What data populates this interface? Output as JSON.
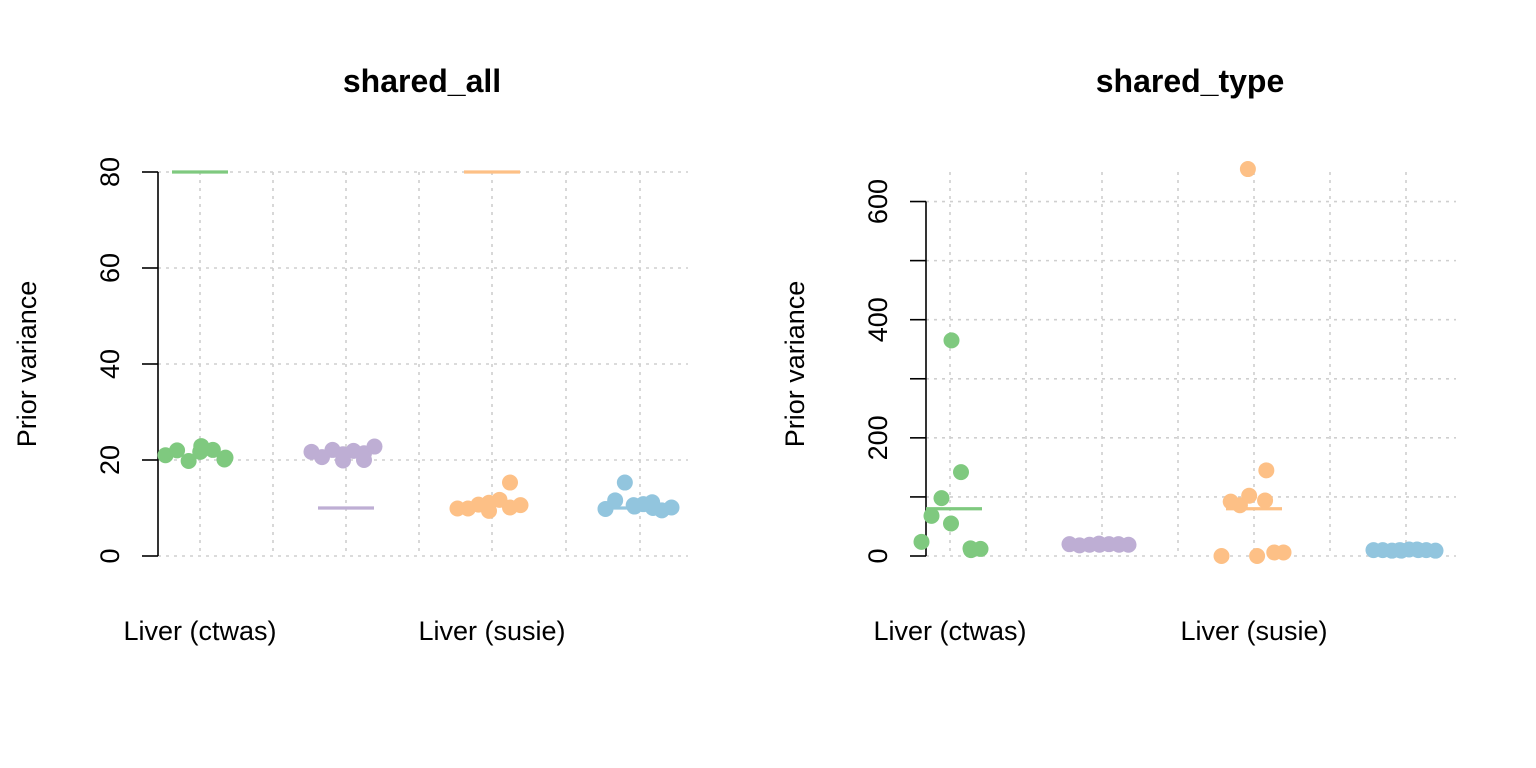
{
  "chart_data": [
    {
      "type": "scatter",
      "title": "shared_all",
      "xlabel": "",
      "ylabel": "Prior variance",
      "ylim": [
        0,
        80
      ],
      "yticks": [
        0,
        20,
        40,
        60,
        80
      ],
      "categories": [
        "Liver (ctwas)",
        "",
        "Liver (susie)",
        ""
      ],
      "category_labels_shown": [
        "Liver (ctwas)",
        "Liver (susie)"
      ],
      "grid": true,
      "series": [
        {
          "color": "#7fc97f",
          "values": [
            21.0,
            22.0,
            19.8,
            21.7,
            22.9,
            22.1,
            20.1,
            20.5
          ],
          "median_line": 80
        },
        {
          "color": "#beaed4",
          "values": [
            21.7,
            20.6,
            22.1,
            19.9,
            21.2,
            21.9,
            20.0,
            21.4,
            22.8
          ],
          "median_line": 10
        },
        {
          "color": "#fdc086",
          "values": [
            9.9,
            9.9,
            10.7,
            11.1,
            9.4,
            11.7,
            10.1,
            15.3,
            10.6
          ],
          "median_line": 80
        },
        {
          "color": "#92c5de",
          "values": [
            9.8,
            11.6,
            15.3,
            10.3,
            10.6,
            10.8,
            10.0,
            11.2,
            9.5,
            10.1
          ],
          "median_line": 10
        }
      ]
    },
    {
      "type": "scatter",
      "title": "shared_type",
      "xlabel": "",
      "ylabel": "Prior variance",
      "ylim": [
        0,
        650
      ],
      "yticks": [
        0,
        200,
        400,
        600
      ],
      "yminor": [
        100,
        300,
        500
      ],
      "categories": [
        "Liver (ctwas)",
        "",
        "Liver (susie)",
        ""
      ],
      "category_labels_shown": [
        "Liver (ctwas)",
        "Liver (susie)"
      ],
      "grid": true,
      "series": [
        {
          "color": "#7fc97f",
          "values": [
            24,
            68,
            98,
            365,
            55,
            142,
            10,
            13,
            12
          ],
          "median_line": 80
        },
        {
          "color": "#beaed4",
          "values": [
            20,
            18,
            19,
            19,
            21,
            20,
            19,
            20,
            19
          ],
          "median_line": 15
        },
        {
          "color": "#fdc086",
          "values": [
            0,
            92,
            86,
            102,
            655,
            0,
            145,
            94,
            6,
            6
          ],
          "median_line": 80
        },
        {
          "color": "#92c5de",
          "values": [
            10,
            10,
            9,
            9,
            10,
            11,
            10,
            11,
            10,
            9
          ],
          "median_line": 10
        }
      ]
    }
  ]
}
